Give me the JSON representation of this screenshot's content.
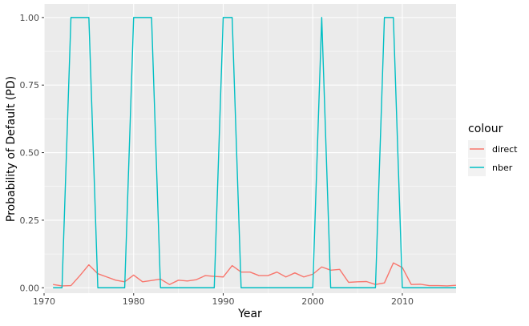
{
  "chart_data": {
    "type": "line",
    "xlabel": "Year",
    "ylabel": "Probability of Default (PD)",
    "xlim": [
      1970,
      2016
    ],
    "ylim": [
      -0.02,
      1.05
    ],
    "x_ticks": [
      1970,
      1980,
      1990,
      2000,
      2010
    ],
    "y_ticks": [
      0.0,
      0.25,
      0.5,
      0.75,
      1.0
    ],
    "y_tick_labels": [
      "0.00",
      "0.25",
      "0.50",
      "0.75",
      "1.00"
    ],
    "grid": true,
    "legend": {
      "title": "colour",
      "placement": "right"
    },
    "series": [
      {
        "name": "direct",
        "color": "#F8766D",
        "x": [
          1971,
          1972,
          1973,
          1974,
          1975,
          1976,
          1977,
          1978,
          1979,
          1980,
          1981,
          1982,
          1983,
          1984,
          1985,
          1986,
          1987,
          1988,
          1989,
          1990,
          1991,
          1992,
          1993,
          1994,
          1995,
          1996,
          1997,
          1998,
          1999,
          2000,
          2001,
          2002,
          2003,
          2004,
          2005,
          2006,
          2007,
          2008,
          2009,
          2010,
          2011,
          2012,
          2013,
          2014,
          2015,
          2016
        ],
        "y": [
          0.012,
          0.007,
          0.008,
          0.045,
          0.085,
          0.052,
          0.04,
          0.028,
          0.022,
          0.047,
          0.022,
          0.027,
          0.032,
          0.012,
          0.028,
          0.025,
          0.03,
          0.045,
          0.042,
          0.04,
          0.082,
          0.058,
          0.058,
          0.045,
          0.045,
          0.058,
          0.04,
          0.055,
          0.04,
          0.05,
          0.077,
          0.065,
          0.068,
          0.02,
          0.022,
          0.023,
          0.012,
          0.018,
          0.092,
          0.075,
          0.012,
          0.013,
          0.008,
          0.008,
          0.007,
          0.009
        ]
      },
      {
        "name": "nber",
        "color": "#00BFC4",
        "x": [
          1971,
          1972,
          1973,
          1974,
          1975,
          1976,
          1977,
          1978,
          1979,
          1980,
          1981,
          1982,
          1983,
          1984,
          1985,
          1986,
          1987,
          1988,
          1989,
          1990,
          1991,
          1992,
          1993,
          1994,
          1995,
          1996,
          1997,
          1998,
          1999,
          2000,
          2001,
          2002,
          2003,
          2004,
          2005,
          2006,
          2007,
          2008,
          2009,
          2010,
          2011,
          2012,
          2013,
          2014,
          2015,
          2016
        ],
        "y": [
          0,
          0,
          1,
          1,
          1,
          0,
          0,
          0,
          0,
          1,
          1,
          1,
          0,
          0,
          0,
          0,
          0,
          0,
          0,
          1,
          1,
          0,
          0,
          0,
          0,
          0,
          0,
          0,
          0,
          0,
          1,
          0,
          0,
          0,
          0,
          0,
          0,
          1,
          1,
          0,
          0,
          0,
          0,
          0,
          0,
          0
        ]
      }
    ]
  }
}
